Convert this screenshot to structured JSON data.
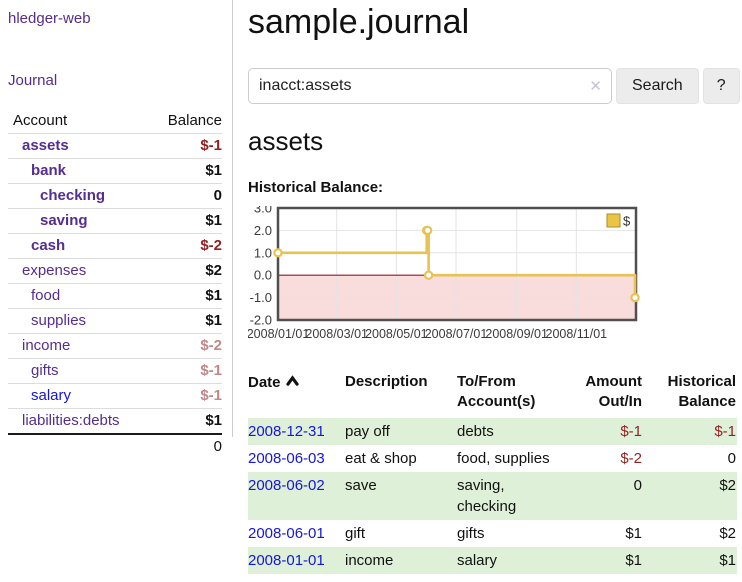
{
  "app": {
    "brand": "hledger-web"
  },
  "sidebar": {
    "journal_link": "Journal",
    "table": {
      "headers": {
        "account": "Account",
        "balance": "Balance"
      },
      "rows": [
        {
          "name": "assets",
          "depth": 1,
          "bold": true,
          "balance": "$-1",
          "neg": "strong",
          "link": "purple"
        },
        {
          "name": "bank",
          "depth": 2,
          "bold": true,
          "balance": "$1",
          "neg": "none",
          "link": "purple"
        },
        {
          "name": "checking",
          "depth": 3,
          "bold": true,
          "balance": "0",
          "neg": "none",
          "link": "purple"
        },
        {
          "name": "saving",
          "depth": 3,
          "bold": true,
          "balance": "$1",
          "neg": "none",
          "link": "purple"
        },
        {
          "name": "cash",
          "depth": 2,
          "bold": true,
          "balance": "$-2",
          "neg": "strong",
          "link": "purple"
        },
        {
          "name": "expenses",
          "depth": 1,
          "bold": false,
          "balance": "$2",
          "neg": "none",
          "link": "purple"
        },
        {
          "name": "food",
          "depth": 2,
          "bold": false,
          "balance": "$1",
          "neg": "none",
          "link": "purple"
        },
        {
          "name": "supplies",
          "depth": 2,
          "bold": false,
          "balance": "$1",
          "neg": "none",
          "link": "purple"
        },
        {
          "name": "income",
          "depth": 1,
          "bold": false,
          "balance": "$-2",
          "neg": "muted",
          "link": "purple"
        },
        {
          "name": "gifts",
          "depth": 2,
          "bold": false,
          "balance": "$-1",
          "neg": "muted",
          "link": "purple"
        },
        {
          "name": "salary",
          "depth": 2,
          "bold": false,
          "balance": "$-1",
          "neg": "muted",
          "link": "blue"
        },
        {
          "name": "liabilities:debts",
          "depth": 1,
          "bold": false,
          "balance": "$1",
          "neg": "none",
          "link": "purple"
        }
      ],
      "total": "0"
    }
  },
  "main": {
    "title": "sample.journal",
    "search": {
      "value": "inacct:assets",
      "clear_icon": "✕",
      "button_label": "Search",
      "help_label": "?"
    },
    "account_heading": "assets",
    "section_label": "Historical Balance:"
  },
  "chart_data": {
    "type": "line",
    "step": true,
    "title": "Historical Balance:",
    "legend": {
      "label": "$",
      "position": "top-right"
    },
    "series": [
      {
        "name": "$",
        "points": [
          {
            "date": "2008-01-01",
            "value": 1
          },
          {
            "date": "2008-06-01",
            "value": 2
          },
          {
            "date": "2008-06-02",
            "value": 2
          },
          {
            "date": "2008-06-03",
            "value": 0
          },
          {
            "date": "2008-12-31",
            "value": -1
          }
        ]
      }
    ],
    "x_start": "2008-01-01",
    "x_end": "2009-01-01",
    "x_tick_dates": [
      "2008-01-01",
      "2008-03-01",
      "2008-05-01",
      "2008-07-01",
      "2008-09-01",
      "2008-11-01"
    ],
    "x_tick_labels": [
      "2008/01/01",
      "2008/03/01",
      "2008/05/01",
      "2008/07/01",
      "2008/09/01",
      "2008/11/01"
    ],
    "y_ticks": [
      3,
      2,
      1,
      0,
      -1,
      -2
    ],
    "ylim": [
      -2,
      3
    ],
    "grid": true,
    "negative_region": true,
    "colors": {
      "line": "#e8c253",
      "marker_fill": "#ffffff",
      "negative_fill": "#f9dcdc",
      "zero_line": "#8c1b1b",
      "grid": "#e4e4e4",
      "border": "#4f4f4f",
      "legend_fill": "#eac445",
      "legend_border": "#ad8d2d",
      "tick_text": "#3b3b3b"
    }
  },
  "register": {
    "headers": [
      {
        "label": "Date",
        "sort": "asc"
      },
      {
        "label": "Description"
      },
      {
        "label": "To/From Account(s)"
      },
      {
        "label": "Amount Out/In"
      },
      {
        "label": "Historical Balance"
      }
    ],
    "rows": [
      {
        "date": "2008-12-31",
        "description": "pay off",
        "accounts": "debts",
        "amount": "$-1",
        "balance": "$-1"
      },
      {
        "date": "2008-06-03",
        "description": "eat & shop",
        "accounts": "food, supplies",
        "amount": "$-2",
        "balance": "0"
      },
      {
        "date": "2008-06-02",
        "description": "save",
        "accounts": "saving, checking",
        "amount": "0",
        "balance": "$2"
      },
      {
        "date": "2008-06-01",
        "description": "gift",
        "accounts": "gifts",
        "amount": "$1",
        "balance": "$2"
      },
      {
        "date": "2008-01-01",
        "description": "income",
        "accounts": "salary",
        "amount": "$1",
        "balance": "$1"
      }
    ]
  }
}
